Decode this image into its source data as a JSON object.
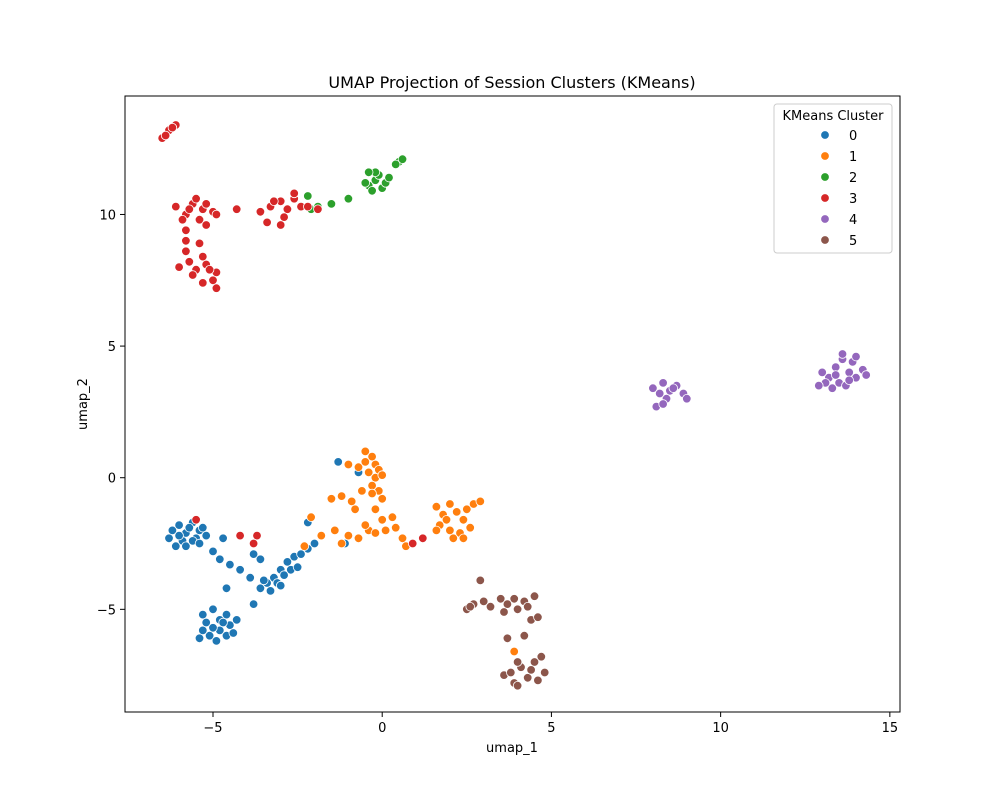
{
  "chart_data": {
    "type": "scatter",
    "title": "UMAP Projection of Session Clusters (KMeans)",
    "xlabel": "umap_1",
    "ylabel": "umap_2",
    "xlim": [
      -7.6,
      15.3
    ],
    "ylim": [
      -8.9,
      14.5
    ],
    "xticks": [
      -5,
      0,
      5,
      10,
      15
    ],
    "yticks": [
      -5,
      0,
      5,
      10
    ],
    "grid": false,
    "legend": {
      "title": "KMeans Cluster",
      "placement": "top-right"
    },
    "series": [
      {
        "name": "0",
        "color": "#1f77b4",
        "points": [
          [
            -6.2,
            -2.0
          ],
          [
            -6.0,
            -1.8
          ],
          [
            -5.8,
            -2.1
          ],
          [
            -5.6,
            -1.7
          ],
          [
            -5.4,
            -2.0
          ],
          [
            -5.5,
            -2.3
          ],
          [
            -5.9,
            -2.4
          ],
          [
            -6.3,
            -2.3
          ],
          [
            -5.7,
            -1.9
          ],
          [
            -5.3,
            -1.9
          ],
          [
            -6.1,
            -2.6
          ],
          [
            -5.8,
            -2.6
          ],
          [
            -6.0,
            -2.2
          ],
          [
            -5.6,
            -2.4
          ],
          [
            -5.2,
            -2.2
          ],
          [
            -5.4,
            -2.5
          ],
          [
            -5.3,
            -5.2
          ],
          [
            -5.0,
            -5.0
          ],
          [
            -4.8,
            -5.4
          ],
          [
            -4.6,
            -5.2
          ],
          [
            -4.5,
            -5.6
          ],
          [
            -4.8,
            -5.8
          ],
          [
            -5.1,
            -6.0
          ],
          [
            -5.3,
            -5.8
          ],
          [
            -4.9,
            -6.2
          ],
          [
            -4.6,
            -6.0
          ],
          [
            -4.4,
            -5.9
          ],
          [
            -5.2,
            -5.5
          ],
          [
            -4.7,
            -5.5
          ],
          [
            -5.4,
            -6.1
          ],
          [
            -5.0,
            -5.7
          ],
          [
            -4.3,
            -5.4
          ],
          [
            -3.6,
            -4.2
          ],
          [
            -3.4,
            -4.0
          ],
          [
            -3.2,
            -3.8
          ],
          [
            -3.0,
            -3.5
          ],
          [
            -2.8,
            -3.2
          ],
          [
            -2.6,
            -3.0
          ],
          [
            -2.4,
            -2.9
          ],
          [
            -2.9,
            -3.7
          ],
          [
            -3.1,
            -4.0
          ],
          [
            -3.3,
            -4.3
          ],
          [
            -2.7,
            -3.5
          ],
          [
            -2.5,
            -3.4
          ],
          [
            -3.5,
            -3.9
          ],
          [
            -3.0,
            -4.1
          ],
          [
            -5.0,
            -2.8
          ],
          [
            -4.8,
            -3.1
          ],
          [
            -4.5,
            -3.3
          ],
          [
            -4.2,
            -3.5
          ],
          [
            -3.9,
            -3.8
          ],
          [
            -4.7,
            -2.3
          ],
          [
            -3.8,
            -2.9
          ],
          [
            -3.6,
            -3.1
          ],
          [
            -3.8,
            -4.8
          ],
          [
            -4.6,
            -4.2
          ],
          [
            -2.2,
            -2.7
          ],
          [
            -2.0,
            -2.5
          ],
          [
            -1.3,
            0.6
          ],
          [
            -0.7,
            0.2
          ],
          [
            -1.1,
            -2.5
          ],
          [
            -2.2,
            -1.7
          ]
        ]
      },
      {
        "name": "1",
        "color": "#ff7f0e",
        "points": [
          [
            -0.5,
            1.0
          ],
          [
            -0.3,
            0.8
          ],
          [
            -0.2,
            0.5
          ],
          [
            -0.4,
            0.2
          ],
          [
            -0.1,
            0.3
          ],
          [
            -0.5,
            0.6
          ],
          [
            -0.2,
            0.0
          ],
          [
            0.0,
            0.1
          ],
          [
            -0.7,
            0.4
          ],
          [
            -0.3,
            -0.3
          ],
          [
            -0.1,
            -0.5
          ],
          [
            -1.0,
            0.5
          ],
          [
            -1.5,
            -0.8
          ],
          [
            -1.2,
            -0.7
          ],
          [
            -0.9,
            -0.9
          ],
          [
            -0.6,
            -0.5
          ],
          [
            -0.3,
            -0.6
          ],
          [
            0.0,
            -0.8
          ],
          [
            -0.8,
            -1.2
          ],
          [
            -1.4,
            -2.0
          ],
          [
            -1.0,
            -2.2
          ],
          [
            -0.7,
            -2.3
          ],
          [
            -0.4,
            -2.0
          ],
          [
            -0.2,
            -2.1
          ],
          [
            0.1,
            -2.0
          ],
          [
            0.4,
            -1.9
          ],
          [
            0.6,
            -2.3
          ],
          [
            0.3,
            -1.5
          ],
          [
            -0.5,
            -1.8
          ],
          [
            -1.2,
            -2.5
          ],
          [
            -0.2,
            -1.2
          ],
          [
            0.0,
            -1.6
          ],
          [
            1.6,
            -1.1
          ],
          [
            1.8,
            -1.4
          ],
          [
            2.0,
            -1.0
          ],
          [
            2.2,
            -1.3
          ],
          [
            2.4,
            -1.6
          ],
          [
            1.7,
            -1.8
          ],
          [
            2.0,
            -2.0
          ],
          [
            2.3,
            -2.1
          ],
          [
            1.9,
            -1.6
          ],
          [
            2.5,
            -1.2
          ],
          [
            2.7,
            -1.0
          ],
          [
            2.9,
            -0.9
          ],
          [
            2.1,
            -2.3
          ],
          [
            1.6,
            -2.0
          ],
          [
            2.4,
            -2.3
          ],
          [
            2.6,
            -1.9
          ],
          [
            -2.1,
            -1.5
          ],
          [
            -1.8,
            -2.2
          ],
          [
            -2.3,
            -2.6
          ],
          [
            3.9,
            -6.6
          ],
          [
            0.7,
            -2.6
          ]
        ]
      },
      {
        "name": "2",
        "color": "#2ca02c",
        "points": [
          [
            -0.4,
            11.1
          ],
          [
            -0.2,
            11.3
          ],
          [
            0.0,
            11.0
          ],
          [
            -0.3,
            10.9
          ],
          [
            -0.1,
            11.5
          ],
          [
            -0.5,
            11.2
          ],
          [
            0.1,
            11.2
          ],
          [
            -0.2,
            11.6
          ],
          [
            0.2,
            11.4
          ],
          [
            -0.4,
            11.6
          ],
          [
            0.5,
            12.0
          ],
          [
            0.6,
            12.1
          ],
          [
            0.4,
            11.9
          ],
          [
            -1.5,
            10.4
          ],
          [
            -1.0,
            10.6
          ],
          [
            -2.2,
            10.7
          ],
          [
            -2.1,
            10.2
          ],
          [
            -1.9,
            10.3
          ]
        ]
      },
      {
        "name": "3",
        "color": "#d62728",
        "points": [
          [
            -6.5,
            12.9
          ],
          [
            -6.3,
            13.2
          ],
          [
            -6.1,
            13.4
          ],
          [
            -6.4,
            13.0
          ],
          [
            -6.2,
            13.3
          ],
          [
            -6.1,
            10.3
          ],
          [
            -5.8,
            10.0
          ],
          [
            -5.6,
            10.4
          ],
          [
            -5.3,
            10.2
          ],
          [
            -5.0,
            10.1
          ],
          [
            -5.4,
            9.8
          ],
          [
            -5.7,
            10.2
          ],
          [
            -5.9,
            9.8
          ],
          [
            -5.2,
            10.4
          ],
          [
            -4.9,
            10.0
          ],
          [
            -5.5,
            10.6
          ],
          [
            -4.3,
            10.2
          ],
          [
            -5.8,
            9.4
          ],
          [
            -5.2,
            9.6
          ],
          [
            -5.8,
            9.0
          ],
          [
            -5.4,
            8.9
          ],
          [
            -5.7,
            8.2
          ],
          [
            -5.5,
            7.9
          ],
          [
            -5.2,
            8.1
          ],
          [
            -4.9,
            7.8
          ],
          [
            -5.0,
            7.5
          ],
          [
            -5.3,
            7.4
          ],
          [
            -4.9,
            7.2
          ],
          [
            -5.1,
            7.9
          ],
          [
            -6.0,
            8.0
          ],
          [
            -5.6,
            7.7
          ],
          [
            -5.3,
            8.4
          ],
          [
            -5.8,
            8.6
          ],
          [
            -3.6,
            10.1
          ],
          [
            -3.3,
            10.3
          ],
          [
            -3.0,
            10.5
          ],
          [
            -2.8,
            10.2
          ],
          [
            -2.6,
            10.6
          ],
          [
            -2.4,
            10.3
          ],
          [
            -2.9,
            9.9
          ],
          [
            -3.4,
            9.7
          ],
          [
            -2.6,
            10.8
          ],
          [
            -3.2,
            10.5
          ],
          [
            -2.2,
            10.3
          ],
          [
            -1.9,
            10.2
          ],
          [
            -3.0,
            9.6
          ],
          [
            -3.7,
            -2.2
          ],
          [
            -3.8,
            -2.5
          ],
          [
            -4.2,
            -2.2
          ],
          [
            1.2,
            -2.3
          ],
          [
            0.9,
            -2.5
          ],
          [
            -5.5,
            -1.6
          ]
        ]
      },
      {
        "name": "4",
        "color": "#9467bd",
        "points": [
          [
            13.0,
            4.0
          ],
          [
            13.2,
            3.8
          ],
          [
            13.4,
            4.2
          ],
          [
            13.6,
            4.5
          ],
          [
            13.8,
            4.0
          ],
          [
            14.0,
            3.8
          ],
          [
            13.5,
            3.6
          ],
          [
            13.3,
            3.4
          ],
          [
            13.7,
            3.5
          ],
          [
            14.2,
            4.1
          ],
          [
            13.9,
            4.4
          ],
          [
            13.1,
            3.6
          ],
          [
            13.6,
            4.7
          ],
          [
            14.0,
            4.6
          ],
          [
            13.4,
            3.9
          ],
          [
            13.8,
            3.7
          ],
          [
            14.3,
            3.9
          ],
          [
            12.9,
            3.5
          ],
          [
            8.0,
            3.4
          ],
          [
            8.3,
            3.6
          ],
          [
            8.5,
            3.3
          ],
          [
            8.7,
            3.5
          ],
          [
            8.9,
            3.2
          ],
          [
            8.4,
            3.0
          ],
          [
            8.1,
            2.7
          ],
          [
            8.3,
            2.8
          ],
          [
            8.6,
            3.4
          ],
          [
            9.0,
            3.0
          ],
          [
            8.2,
            3.2
          ]
        ]
      },
      {
        "name": "5",
        "color": "#8c564b",
        "points": [
          [
            2.5,
            -5.0
          ],
          [
            2.7,
            -4.8
          ],
          [
            3.0,
            -4.7
          ],
          [
            3.2,
            -4.9
          ],
          [
            3.5,
            -4.6
          ],
          [
            3.7,
            -4.8
          ],
          [
            4.0,
            -5.0
          ],
          [
            4.2,
            -4.7
          ],
          [
            4.5,
            -4.5
          ],
          [
            4.3,
            -4.9
          ],
          [
            3.9,
            -4.6
          ],
          [
            3.6,
            -5.1
          ],
          [
            4.4,
            -5.4
          ],
          [
            4.6,
            -5.3
          ],
          [
            2.9,
            -3.9
          ],
          [
            2.6,
            -4.9
          ],
          [
            3.6,
            -7.5
          ],
          [
            3.9,
            -7.8
          ],
          [
            4.1,
            -7.2
          ],
          [
            4.3,
            -7.6
          ],
          [
            4.5,
            -7.0
          ],
          [
            4.7,
            -6.8
          ],
          [
            4.0,
            -7.0
          ],
          [
            3.8,
            -7.4
          ],
          [
            4.4,
            -7.3
          ],
          [
            4.6,
            -7.7
          ],
          [
            3.7,
            -6.1
          ],
          [
            4.2,
            -6.0
          ],
          [
            4.0,
            -7.9
          ],
          [
            4.8,
            -7.4
          ]
        ]
      }
    ]
  }
}
